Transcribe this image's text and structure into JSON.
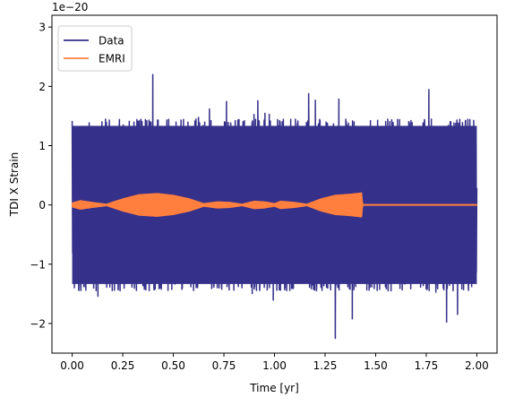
{
  "chart_data": {
    "type": "line",
    "title": "",
    "xlabel": "Time [yr]",
    "ylabel": "TDI X Strain",
    "offset_label": "1e−20",
    "xlim": [
      -0.1,
      2.1
    ],
    "ylim": [
      -2.5,
      3.2
    ],
    "x_ticks": [
      0.0,
      0.25,
      0.5,
      0.75,
      1.0,
      1.25,
      1.5,
      1.75,
      2.0
    ],
    "x_tick_labels": [
      "0.00",
      "0.25",
      "0.50",
      "0.75",
      "1.00",
      "1.25",
      "1.50",
      "1.75",
      "2.00"
    ],
    "y_ticks": [
      -2,
      -1,
      0,
      1,
      2,
      3
    ],
    "y_tick_labels": [
      "−2",
      "−1",
      "0",
      "1",
      "2",
      "3"
    ],
    "grid": false,
    "legend_position": "top-left",
    "x_range": [
      0.0,
      2.0
    ],
    "series": [
      {
        "name": "Data",
        "color": "#35308a",
        "noise_amplitude": 1.45,
        "peak_max": 2.2,
        "peak_min": -2.25
      },
      {
        "name": "EMRI",
        "color": "#ff7f3f",
        "envelope": [
          [
            0.0,
            0.03
          ],
          [
            0.04,
            0.07
          ],
          [
            0.1,
            0.04
          ],
          [
            0.17,
            0.01
          ],
          [
            0.25,
            0.1
          ],
          [
            0.33,
            0.17
          ],
          [
            0.42,
            0.19
          ],
          [
            0.5,
            0.16
          ],
          [
            0.58,
            0.1
          ],
          [
            0.65,
            0.02
          ],
          [
            0.72,
            0.05
          ],
          [
            0.78,
            0.04
          ],
          [
            0.84,
            0.01
          ],
          [
            0.9,
            0.06
          ],
          [
            0.95,
            0.05
          ],
          [
            1.0,
            0.02
          ],
          [
            1.03,
            0.06
          ],
          [
            1.1,
            0.04
          ],
          [
            1.16,
            0.01
          ],
          [
            1.23,
            0.1
          ],
          [
            1.3,
            0.16
          ],
          [
            1.38,
            0.18
          ],
          [
            1.43,
            0.2
          ],
          [
            1.435,
            0.0
          ],
          [
            2.0,
            0.0
          ]
        ]
      }
    ]
  }
}
